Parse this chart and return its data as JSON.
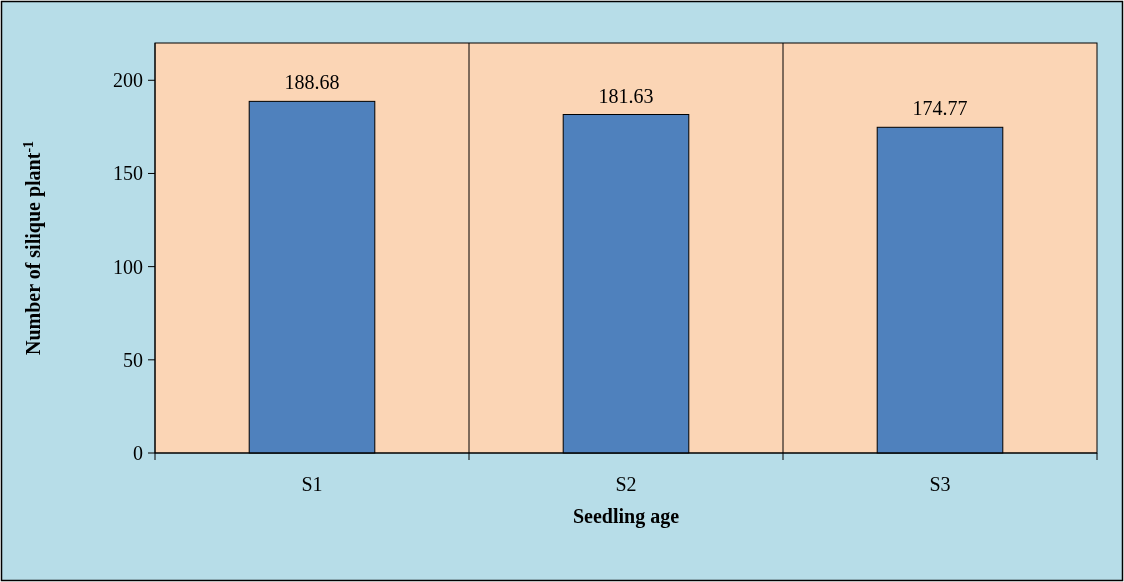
{
  "chart_data": {
    "type": "bar",
    "xlabel": "Seedling age",
    "ylabel": "Number of silique plant$^{-1}$",
    "categories": [
      "S1",
      "S2",
      "S3"
    ],
    "values": [
      188.68,
      181.63,
      174.77
    ],
    "color": "#4f81bd",
    "ylim": [
      0,
      220
    ],
    "yticks": [
      0,
      50,
      100,
      150,
      200
    ],
    "grid": "x",
    "data_labels": true
  }
}
